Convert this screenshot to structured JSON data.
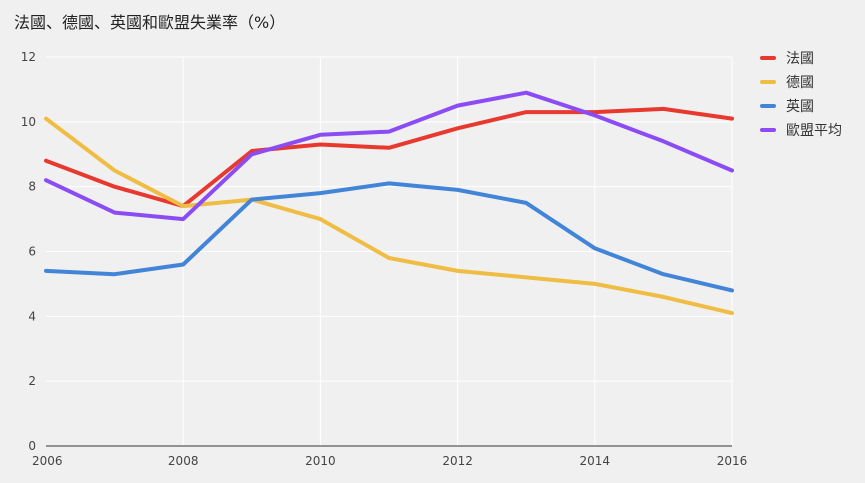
{
  "chart_data": {
    "type": "line",
    "title": "法國、德國、英國和歐盟失業率（%）",
    "xlabel": "",
    "ylabel": "",
    "x": [
      2006,
      2007,
      2008,
      2009,
      2010,
      2011,
      2012,
      2013,
      2014,
      2015,
      2016
    ],
    "xlim": [
      2006,
      2016
    ],
    "ylim": [
      0,
      12
    ],
    "xticks": [
      "2006",
      "2008",
      "2010",
      "2012",
      "2014",
      "2016"
    ],
    "yticks": [
      "0",
      "2",
      "4",
      "6",
      "8",
      "10",
      "12"
    ],
    "grid": true,
    "legend_position": "right",
    "series": [
      {
        "name": "法國",
        "color": "#e8392f",
        "values": [
          8.8,
          8.0,
          7.4,
          9.1,
          9.3,
          9.2,
          9.8,
          10.3,
          10.3,
          10.4,
          10.1
        ]
      },
      {
        "name": "德國",
        "color": "#f0bd44",
        "values": [
          10.1,
          8.5,
          7.4,
          7.6,
          7.0,
          5.8,
          5.4,
          5.2,
          5.0,
          4.6,
          4.1
        ]
      },
      {
        "name": "英國",
        "color": "#4285d8",
        "values": [
          5.4,
          5.3,
          5.6,
          7.6,
          7.8,
          8.1,
          7.9,
          7.5,
          6.1,
          5.3,
          4.8
        ]
      },
      {
        "name": "歐盟平均",
        "color": "#8b4cf5",
        "values": [
          8.2,
          7.2,
          7.0,
          9.0,
          9.6,
          9.7,
          10.5,
          10.9,
          10.2,
          9.4,
          8.5
        ]
      }
    ]
  }
}
